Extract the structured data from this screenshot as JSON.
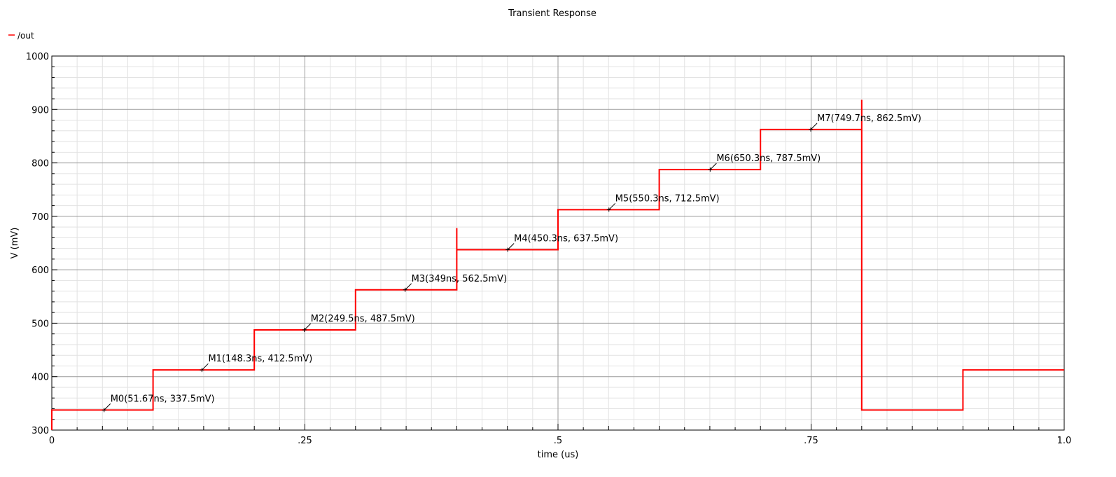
{
  "chart_data": {
    "type": "line",
    "title": "Transient Response",
    "xlabel": "time (us)",
    "ylabel": "V (mV)",
    "xlim": [
      0,
      1.0
    ],
    "ylim": [
      300,
      1000
    ],
    "x_ticks": [
      {
        "value": 0,
        "label": "0"
      },
      {
        "value": 0.25,
        "label": ".25"
      },
      {
        "value": 0.5,
        "label": ".5"
      },
      {
        "value": 0.75,
        "label": ".75"
      },
      {
        "value": 1.0,
        "label": "1.0"
      }
    ],
    "y_ticks": [
      {
        "value": 300,
        "label": "300"
      },
      {
        "value": 400,
        "label": "400"
      },
      {
        "value": 500,
        "label": "500"
      },
      {
        "value": 600,
        "label": "600"
      },
      {
        "value": 700,
        "label": "700"
      },
      {
        "value": 800,
        "label": "800"
      },
      {
        "value": 900,
        "label": "900"
      },
      {
        "value": 1000,
        "label": "1000"
      }
    ],
    "grid": true,
    "legend_position": "top-left",
    "series": [
      {
        "name": "/out",
        "color": "#ff0000",
        "points": [
          [
            0,
            300
          ],
          [
            0,
            337.5
          ],
          [
            0.1,
            337.5
          ],
          [
            0.1,
            412.5
          ],
          [
            0.2,
            412.5
          ],
          [
            0.2,
            487.5
          ],
          [
            0.3,
            487.5
          ],
          [
            0.3,
            562.5
          ],
          [
            0.4,
            562.5
          ],
          [
            0.4,
            678
          ],
          [
            0.4,
            637.5
          ],
          [
            0.5,
            637.5
          ],
          [
            0.5,
            712.5
          ],
          [
            0.6,
            712.5
          ],
          [
            0.6,
            787.5
          ],
          [
            0.7,
            787.5
          ],
          [
            0.7,
            862.5
          ],
          [
            0.8,
            862.5
          ],
          [
            0.8,
            918
          ],
          [
            0.8,
            337.5
          ],
          [
            0.9,
            337.5
          ],
          [
            0.9,
            412.5
          ],
          [
            1.0,
            412.5
          ]
        ]
      }
    ],
    "markers": [
      {
        "label": "M0(51.67ns, 337.5mV)",
        "x": 0.05167,
        "y": 337.5
      },
      {
        "label": "M1(148.3ns, 412.5mV)",
        "x": 0.1483,
        "y": 412.5
      },
      {
        "label": "M2(249.5ns, 487.5mV)",
        "x": 0.2495,
        "y": 487.5
      },
      {
        "label": "M3(349ns, 562.5mV)",
        "x": 0.349,
        "y": 562.5
      },
      {
        "label": "M4(450.3ns, 637.5mV)",
        "x": 0.4503,
        "y": 637.5
      },
      {
        "label": "M5(550.3ns, 712.5mV)",
        "x": 0.5503,
        "y": 712.5
      },
      {
        "label": "M6(650.3ns, 787.5mV)",
        "x": 0.6503,
        "y": 787.5
      },
      {
        "label": "M7(749.7ns, 862.5mV)",
        "x": 0.7497,
        "y": 862.5
      }
    ]
  }
}
